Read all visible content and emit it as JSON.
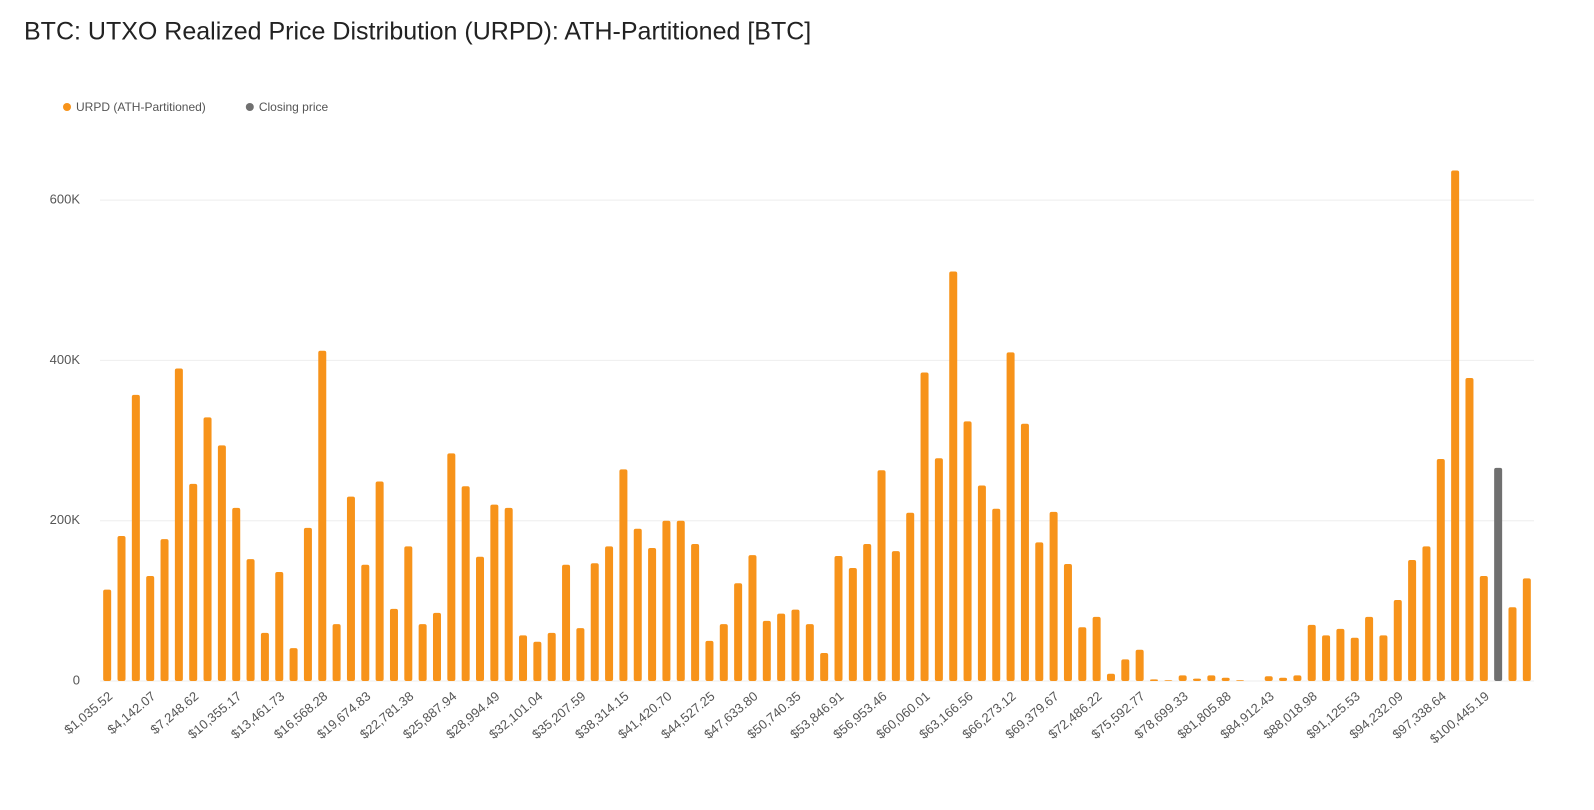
{
  "chart_data": {
    "type": "bar",
    "title": "BTC: UTXO Realized Price Distribution (URPD): ATH-Partitioned [BTC]",
    "categories": [
      "$1,035.52",
      null,
      null,
      "$4,142.07",
      null,
      null,
      "$7,248.62",
      null,
      null,
      "$10,355.17",
      null,
      null,
      "$13,461.73",
      null,
      null,
      "$16,568.28",
      null,
      null,
      "$19,674.83",
      null,
      null,
      "$22,781.38",
      null,
      null,
      "$25,887.94",
      null,
      null,
      "$28,994.49",
      null,
      null,
      "$32,101.04",
      null,
      null,
      "$35,207.59",
      null,
      null,
      "$38,314.15",
      null,
      null,
      "$41,420.70",
      null,
      null,
      "$44,527.25",
      null,
      null,
      "$47,633.80",
      null,
      null,
      "$50,740.35",
      null,
      null,
      "$53,846.91",
      null,
      null,
      "$56,953.46",
      null,
      null,
      "$60,060.01",
      null,
      null,
      "$63,166.56",
      null,
      null,
      "$66,273.12",
      null,
      null,
      "$69,379.67",
      null,
      null,
      "$72,486.22",
      null,
      null,
      "$75,592.77",
      null,
      null,
      "$78,699.33",
      null,
      null,
      "$81,805.88",
      null,
      null,
      "$84,912.43",
      null,
      null,
      "$88,018.98",
      null,
      null,
      "$91,125.53",
      null,
      null,
      "$94,232.09",
      null,
      null,
      "$97,338.64",
      null,
      null,
      "$100,445.19",
      null,
      null,
      null
    ],
    "series": [
      {
        "name": "URPD (ATH-Partitioned)",
        "color": "#f7931a",
        "values": [
          114000,
          181000,
          357000,
          131000,
          177000,
          390000,
          246000,
          329000,
          294000,
          216000,
          152000,
          60000,
          136000,
          41000,
          191000,
          412000,
          71000,
          230000,
          145000,
          249000,
          90000,
          168000,
          71000,
          85000,
          284000,
          243000,
          155000,
          220000,
          216000,
          57000,
          49000,
          60000,
          145000,
          66000,
          147000,
          168000,
          264000,
          190000,
          166000,
          200000,
          200000,
          171000,
          50000,
          71000,
          122000,
          157000,
          75000,
          84000,
          89000,
          71000,
          35000,
          156000,
          141000,
          171000,
          263000,
          162000,
          210000,
          385000,
          278000,
          511000,
          324000,
          244000,
          215000,
          410000,
          321000,
          173000,
          211000,
          146000,
          67000,
          80000,
          9000,
          27000,
          39000,
          2000,
          1000,
          7000,
          3000,
          7000,
          4000,
          1000,
          0,
          6000,
          4000,
          7000,
          70000,
          57000,
          65000,
          54000,
          80000,
          57000,
          101000,
          151000,
          168000,
          277000,
          637000,
          378000,
          131000,
          null,
          92000,
          128000
        ]
      },
      {
        "name": "Closing price",
        "color": "#707070",
        "values": [
          null,
          null,
          null,
          null,
          null,
          null,
          null,
          null,
          null,
          null,
          null,
          null,
          null,
          null,
          null,
          null,
          null,
          null,
          null,
          null,
          null,
          null,
          null,
          null,
          null,
          null,
          null,
          null,
          null,
          null,
          null,
          null,
          null,
          null,
          null,
          null,
          null,
          null,
          null,
          null,
          null,
          null,
          null,
          null,
          null,
          null,
          null,
          null,
          null,
          null,
          null,
          null,
          null,
          null,
          null,
          null,
          null,
          null,
          null,
          null,
          null,
          null,
          null,
          null,
          null,
          null,
          null,
          null,
          null,
          null,
          null,
          null,
          null,
          null,
          null,
          null,
          null,
          null,
          null,
          null,
          null,
          null,
          null,
          null,
          null,
          null,
          null,
          null,
          null,
          null,
          null,
          null,
          null,
          null,
          null,
          null,
          null,
          266000,
          null,
          null
        ]
      }
    ],
    "ylim": [
      0,
      700000
    ],
    "yticks": [
      0,
      {
        "value": 200000,
        "label": "200K"
      },
      {
        "value": 400000,
        "label": "400K"
      },
      {
        "value": 600000,
        "label": "600K"
      }
    ],
    "grid": true
  }
}
